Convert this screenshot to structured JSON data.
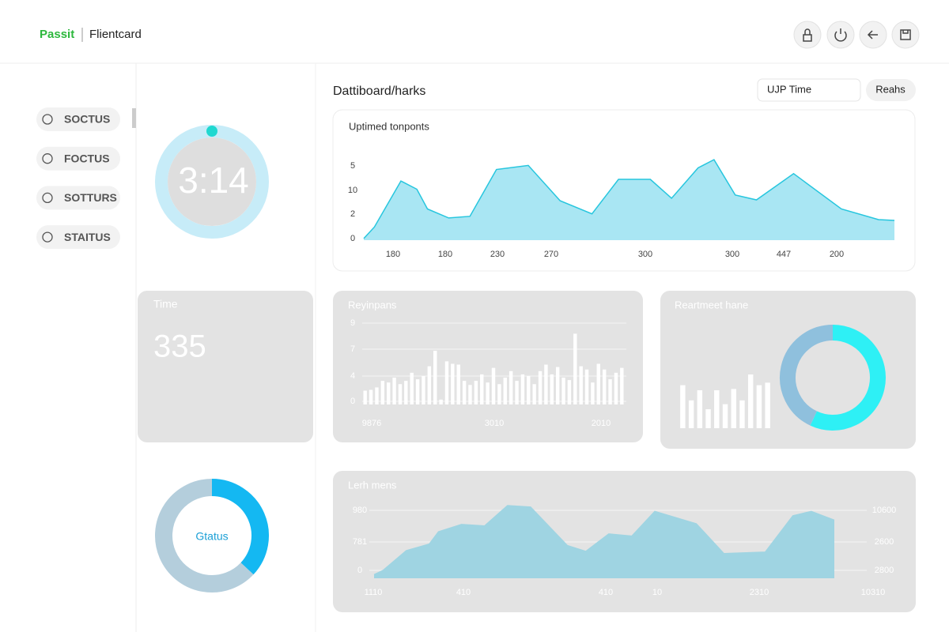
{
  "header": {
    "brand": "Passit",
    "app": "Flientcard"
  },
  "sidebar": {
    "items": [
      "SOCTUS",
      "FOCTUS",
      "SOTTURS",
      "STAITUS"
    ]
  },
  "timer": {
    "text": "3:14"
  },
  "dashboard": {
    "title": "Dattiboard/harks",
    "search": "UJP Time",
    "button": "Reahs"
  },
  "time_card": {
    "title": "Time",
    "value": "335"
  },
  "chart_data": [
    {
      "type": "area",
      "title": "Uptimed tonponts",
      "color": "#a9e6f3",
      "line_color": "#27c6de",
      "xlim": [
        0,
        100
      ],
      "ylim": [
        0,
        100
      ],
      "x": [
        0,
        2,
        7,
        10,
        12,
        16,
        20,
        25,
        31,
        37,
        43,
        48,
        54,
        58,
        63,
        66,
        70,
        74,
        81,
        90,
        97,
        100
      ],
      "values": [
        2,
        16,
        72,
        62,
        38,
        27,
        29,
        86,
        91,
        48,
        32,
        74,
        74,
        51,
        88,
        98,
        55,
        49,
        81,
        38,
        25,
        24
      ],
      "y_axis_labels": [
        "5",
        "10",
        "2",
        "0"
      ],
      "x_axis_labels": [
        "180",
        "180",
        "230",
        "270",
        "300",
        "300",
        "447",
        "200"
      ]
    },
    {
      "type": "bar",
      "title": "Reyinpans",
      "color": "#ffffff",
      "ylim": [
        0,
        100
      ],
      "values": [
        17,
        18,
        21,
        29,
        27,
        33,
        25,
        29,
        39,
        31,
        35,
        47,
        66,
        6,
        53,
        50,
        49,
        29,
        24,
        29,
        37,
        27,
        45,
        25,
        33,
        41,
        29,
        37,
        35,
        25,
        41,
        49,
        37,
        46,
        33,
        30,
        87,
        47,
        43,
        27,
        50,
        43,
        31,
        39,
        45
      ],
      "y_axis_labels": [
        "9",
        "7",
        "4",
        "0"
      ],
      "x_axis_labels": [
        "9876",
        "3010",
        "2010"
      ]
    },
    {
      "type": "bar",
      "title": "Reartmeet hane",
      "color": "#ffffff",
      "ylim": [
        0,
        100
      ],
      "values": [
        68,
        44,
        60,
        30,
        60,
        38,
        62,
        44,
        85,
        68,
        72
      ]
    },
    {
      "type": "pie",
      "values": [
        57,
        43
      ],
      "colors": [
        "#2ef0f5",
        "#8fc0dd"
      ]
    },
    {
      "type": "area",
      "title": "Lerh mens",
      "color": "#9fd4e2",
      "line_color": "#9fd4e2",
      "xlim": [
        0,
        100
      ],
      "ylim": [
        0,
        100
      ],
      "x": [
        0,
        2,
        7,
        12,
        14,
        19,
        24,
        29,
        34,
        42,
        46,
        51,
        56,
        61,
        70,
        76,
        85,
        91,
        95,
        100
      ],
      "values": [
        5,
        11,
        38,
        47,
        64,
        74,
        72,
        100,
        98,
        45,
        37,
        61,
        58,
        92,
        75,
        34,
        36,
        86,
        92,
        80
      ],
      "y_axis_labels": [
        "980",
        "781",
        "0"
      ],
      "y2_axis_labels": [
        "10600",
        "2600",
        "2800"
      ],
      "x_axis_labels": [
        "1110",
        "410",
        "410",
        "10",
        "2310",
        "10310"
      ]
    },
    {
      "type": "pie",
      "center_label": "Gtatus",
      "values": [
        37,
        63
      ],
      "colors": [
        "#14b8f2",
        "#b4cedc"
      ]
    }
  ]
}
